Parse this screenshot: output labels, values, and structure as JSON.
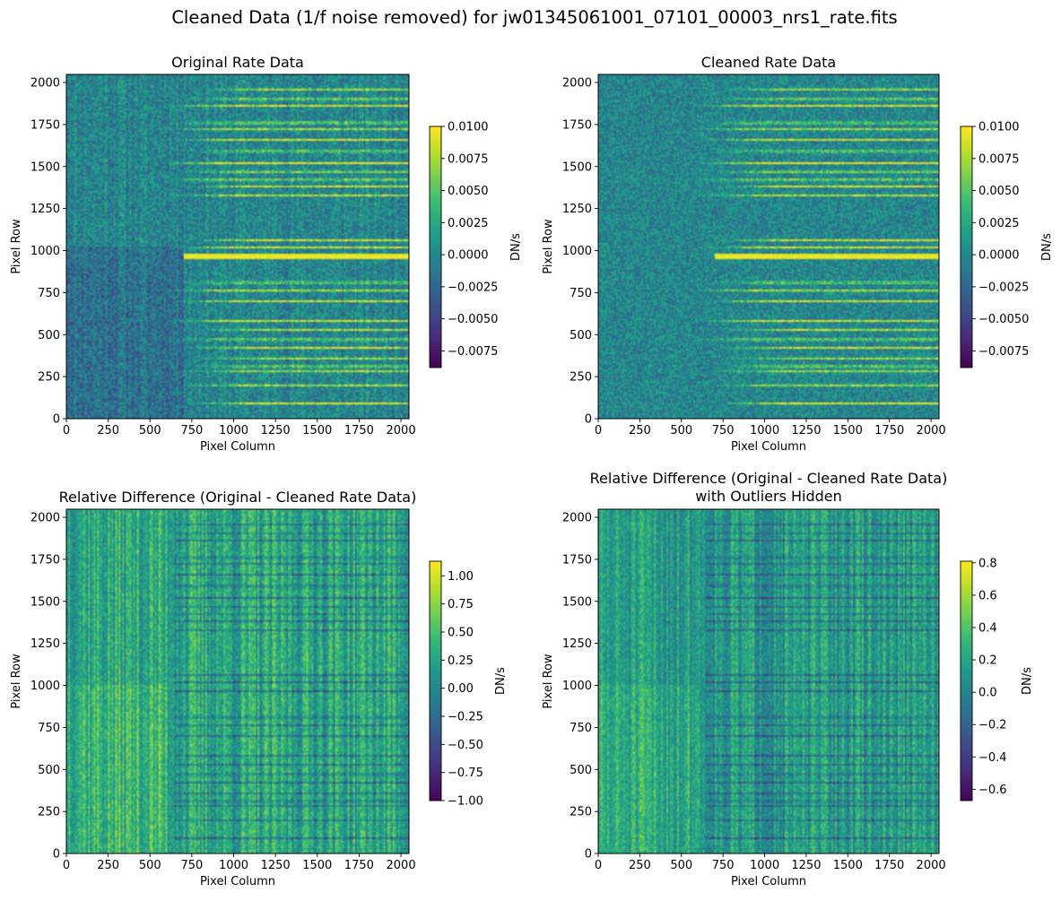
{
  "figure": {
    "suptitle": "Cleaned Data (1/f noise removed) for jw01345061001_07101_00003_nrs1_rate.fits"
  },
  "colors": {
    "viridis": [
      "#440154",
      "#482878",
      "#3e4989",
      "#31688e",
      "#26828e",
      "#1f9e89",
      "#35b779",
      "#6ece58",
      "#b5de2b",
      "#fde725"
    ],
    "axis": "#000000",
    "background": "#ffffff"
  },
  "chart_data": [
    {
      "type": "heatmap",
      "title": "Original Rate Data",
      "xlabel": "Pixel Column",
      "ylabel": "Pixel Row",
      "xlim": [
        0,
        2048
      ],
      "ylim": [
        0,
        2048
      ],
      "xticks": [
        0,
        250,
        500,
        750,
        1000,
        1250,
        1500,
        1750,
        2000
      ],
      "yticks": [
        0,
        250,
        500,
        750,
        1000,
        1250,
        1500,
        1750,
        2000
      ],
      "colorbar": {
        "label": "DN/s",
        "range": [
          -0.0088,
          0.01
        ],
        "ticks": [
          0.01,
          0.0075,
          0.005,
          0.0025,
          0.0,
          -0.0025,
          -0.005,
          -0.0075
        ],
        "tick_labels": [
          "0.0100",
          "0.0075",
          "0.0050",
          "0.0025",
          "0.0000",
          "−0.0025",
          "−0.0050",
          "−0.0075"
        ]
      },
      "image_description": "noisy field near 0 DN/s with bright horizontal spectral traces extending from column ~700 to 2048"
    },
    {
      "type": "heatmap",
      "title": "Cleaned Rate Data",
      "xlabel": "Pixel Column",
      "ylabel": "Pixel Row",
      "xlim": [
        0,
        2048
      ],
      "ylim": [
        0,
        2048
      ],
      "xticks": [
        0,
        250,
        500,
        750,
        1000,
        1250,
        1500,
        1750,
        2000
      ],
      "yticks": [
        0,
        250,
        500,
        750,
        1000,
        1250,
        1500,
        1750,
        2000
      ],
      "colorbar": {
        "label": "DN/s",
        "range": [
          -0.0088,
          0.01
        ],
        "ticks": [
          0.01,
          0.0075,
          0.005,
          0.0025,
          0.0,
          -0.0025,
          -0.005,
          -0.0075
        ],
        "tick_labels": [
          "0.0100",
          "0.0075",
          "0.0050",
          "0.0025",
          "0.0000",
          "−0.0025",
          "−0.0050",
          "−0.0075"
        ]
      },
      "image_description": "same field with column striping removed"
    },
    {
      "type": "heatmap",
      "title": "Relative Difference (Original - Cleaned Rate Data)",
      "xlabel": "Pixel Column",
      "ylabel": "Pixel Row",
      "xlim": [
        0,
        2048
      ],
      "ylim": [
        0,
        2048
      ],
      "xticks": [
        0,
        250,
        500,
        750,
        1000,
        1250,
        1500,
        1750,
        2000
      ],
      "yticks": [
        0,
        250,
        500,
        750,
        1000,
        1250,
        1500,
        1750,
        2000
      ],
      "colorbar": {
        "label": "DN/s",
        "range": [
          -1.0,
          1.13
        ],
        "ticks": [
          1.0,
          0.75,
          0.5,
          0.25,
          0.0,
          -0.25,
          -0.5,
          -0.75,
          -1.0
        ],
        "tick_labels": [
          "1.00",
          "0.75",
          "0.50",
          "0.25",
          "0.00",
          "−0.25",
          "−0.50",
          "−0.75",
          "−1.00"
        ]
      },
      "image_description": "vertical 1/f striping pattern, darker horizontal bands at trace rows"
    },
    {
      "type": "heatmap",
      "title": "Relative Difference (Original - Cleaned Rate Data)\nwith Outliers Hidden",
      "title_lines": [
        "Relative Difference (Original - Cleaned Rate Data)",
        "with Outliers Hidden"
      ],
      "xlabel": "Pixel Column",
      "ylabel": "Pixel Row",
      "xlim": [
        0,
        2048
      ],
      "ylim": [
        0,
        2048
      ],
      "xticks": [
        0,
        250,
        500,
        750,
        1000,
        1250,
        1500,
        1750,
        2000
      ],
      "yticks": [
        0,
        250,
        500,
        750,
        1000,
        1250,
        1500,
        1750,
        2000
      ],
      "colorbar": {
        "label": "DN/s",
        "range": [
          -0.67,
          0.81
        ],
        "ticks": [
          0.8,
          0.6,
          0.4,
          0.2,
          0.0,
          -0.2,
          -0.4,
          -0.6
        ],
        "tick_labels": [
          "0.8",
          "0.6",
          "0.4",
          "0.2",
          "0.0",
          "−0.2",
          "−0.4",
          "−0.6"
        ]
      },
      "image_description": "same difference map with clipped color scale"
    }
  ]
}
